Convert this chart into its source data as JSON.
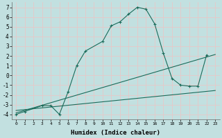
{
  "xlabel": "Humidex (Indice chaleur)",
  "bg_color": "#c2e0e0",
  "grid_color": "#e8c8c8",
  "line_color": "#1a6b5a",
  "xlim": [
    -0.5,
    23.5
  ],
  "ylim": [
    -4.5,
    7.5
  ],
  "xticks": [
    0,
    1,
    2,
    3,
    4,
    5,
    6,
    7,
    8,
    9,
    10,
    11,
    12,
    13,
    14,
    15,
    16,
    17,
    18,
    19,
    20,
    21,
    22,
    23
  ],
  "yticks": [
    -4,
    -3,
    -2,
    -1,
    0,
    1,
    2,
    3,
    4,
    5,
    6,
    7
  ],
  "curve_x": [
    0,
    1,
    3,
    4,
    5,
    6,
    7,
    8,
    10,
    11,
    12,
    13,
    14,
    15,
    16,
    17,
    18,
    19,
    20,
    21,
    22
  ],
  "curve_y": [
    -4.0,
    -3.7,
    -3.1,
    -3.1,
    -4.0,
    -1.7,
    1.0,
    2.5,
    3.5,
    5.1,
    5.5,
    6.3,
    7.0,
    6.8,
    5.3,
    2.3,
    -0.3,
    -1.0,
    -1.1,
    -1.1,
    2.1
  ],
  "line1_x": [
    0,
    23
  ],
  "line1_y": [
    -3.85,
    2.15
  ],
  "line2_x": [
    0,
    23
  ],
  "line2_y": [
    -3.6,
    -1.55
  ]
}
